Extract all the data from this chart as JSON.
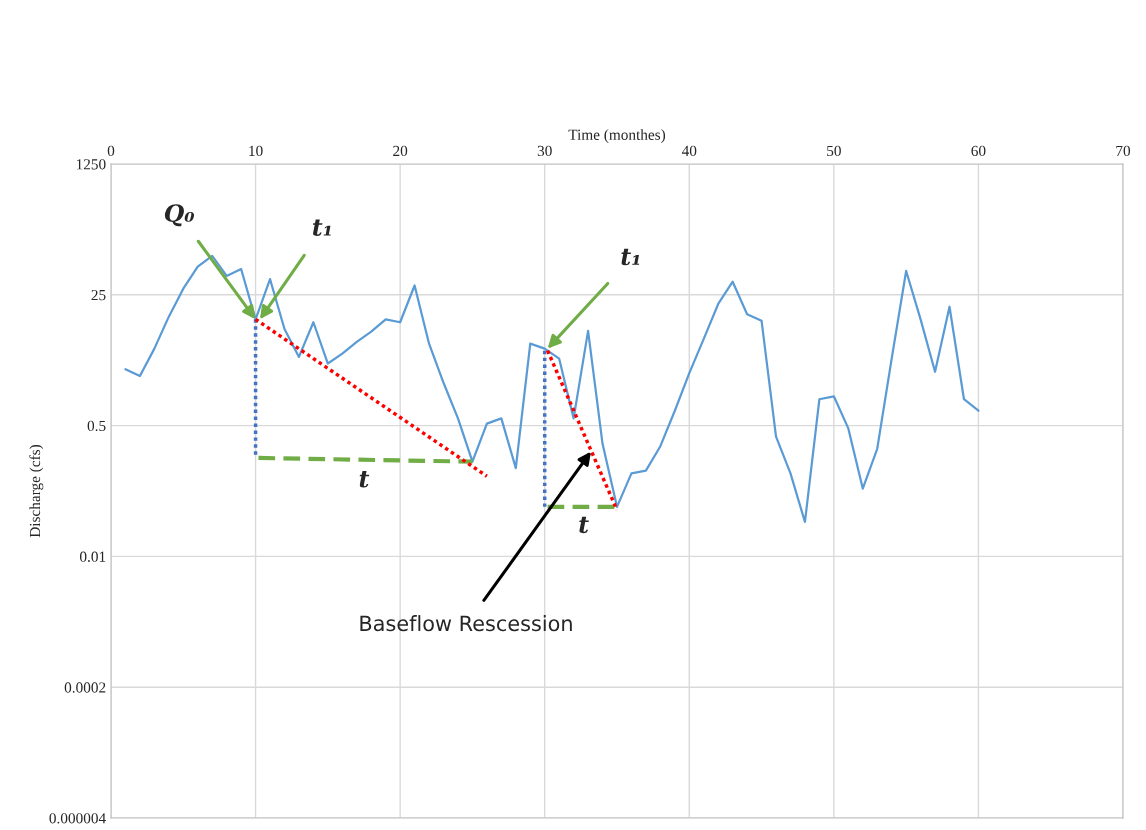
{
  "chart_data": {
    "type": "line",
    "xlabel": "Time (monthes)",
    "ylabel": "Discharge (cfs)",
    "x": [
      1,
      2,
      3,
      4,
      5,
      6,
      7,
      8,
      9,
      10,
      11,
      12,
      13,
      14,
      15,
      16,
      17,
      18,
      19,
      20,
      21,
      22,
      23,
      24,
      25,
      26,
      27,
      28,
      29,
      30,
      31,
      32,
      33,
      34,
      35,
      36,
      37,
      38,
      39,
      40,
      41,
      42,
      43,
      44,
      45,
      46,
      47,
      48,
      49,
      50,
      51,
      52,
      53,
      54,
      55,
      56,
      57,
      58,
      59,
      60
    ],
    "series": [
      {
        "color": "#5b9bd5",
        "values": [
          2.7,
          2.2,
          5,
          13,
          30,
          58,
          80,
          44,
          54,
          12,
          40,
          9,
          3.9,
          11,
          3.2,
          4.3,
          6.1,
          8.3,
          12,
          11,
          33,
          5.8,
          1.8,
          0.62,
          0.17,
          0.53,
          0.62,
          0.14,
          5.8,
          5,
          3.7,
          0.62,
          8.5,
          0.29,
          0.044,
          0.12,
          0.13,
          0.27,
          0.78,
          2.4,
          6.7,
          19,
          37,
          14,
          11.5,
          0.36,
          0.12,
          0.028,
          1.1,
          1.2,
          0.46,
          0.076,
          0.25,
          3.7,
          51,
          12,
          2.5,
          17.5,
          1.1,
          0.78
        ]
      },
      {
        "color": "#4472c4",
        "line_style": "dotted",
        "x": [
          10,
          10
        ],
        "values": [
          12,
          0.19
        ]
      },
      {
        "color": "#70ad47",
        "line_style": "dashed",
        "x": [
          10.2,
          25
        ],
        "values": [
          0.19,
          0.17
        ]
      },
      {
        "color": "#ff0000",
        "line_style": "dotted",
        "x": [
          10,
          26
        ],
        "values": [
          12,
          0.11
        ]
      },
      {
        "color": "#4472c4",
        "line_style": "dotted",
        "x": [
          30,
          30
        ],
        "values": [
          4.7,
          0.044
        ]
      },
      {
        "color": "#70ad47",
        "line_style": "dashed",
        "x": [
          30.2,
          35
        ],
        "values": [
          0.044,
          0.044
        ]
      },
      {
        "color": "#ff0000",
        "line_style": "dotted",
        "x": [
          30.2,
          35
        ],
        "values": [
          4.7,
          0.04
        ]
      }
    ],
    "annotations": [
      {
        "text": "Q₀",
        "x": 10,
        "y": 12
      },
      {
        "text": "t₁",
        "x": 10.3,
        "y": 12
      },
      {
        "text": "t₁",
        "x": 30.2,
        "y": 5
      },
      {
        "text": "t",
        "x": 17.5,
        "y": 0.18
      },
      {
        "text": "t",
        "x": 32.5,
        "y": 0.044
      },
      {
        "text": "Baseflow Rescession",
        "x": 33.2,
        "y": 0.23
      }
    ],
    "log": "y",
    "xlim": [
      0,
      70
    ],
    "xticks": [
      0,
      10,
      20,
      30,
      40,
      50,
      60,
      70
    ],
    "ylim": [
      4e-06,
      1250
    ],
    "yticks": [
      1250,
      25,
      0.5,
      0.01,
      0.0002,
      {
        "value": 4e-06,
        "label": "0.000004"
      }
    ],
    "grid": true,
    "legend": false
  }
}
